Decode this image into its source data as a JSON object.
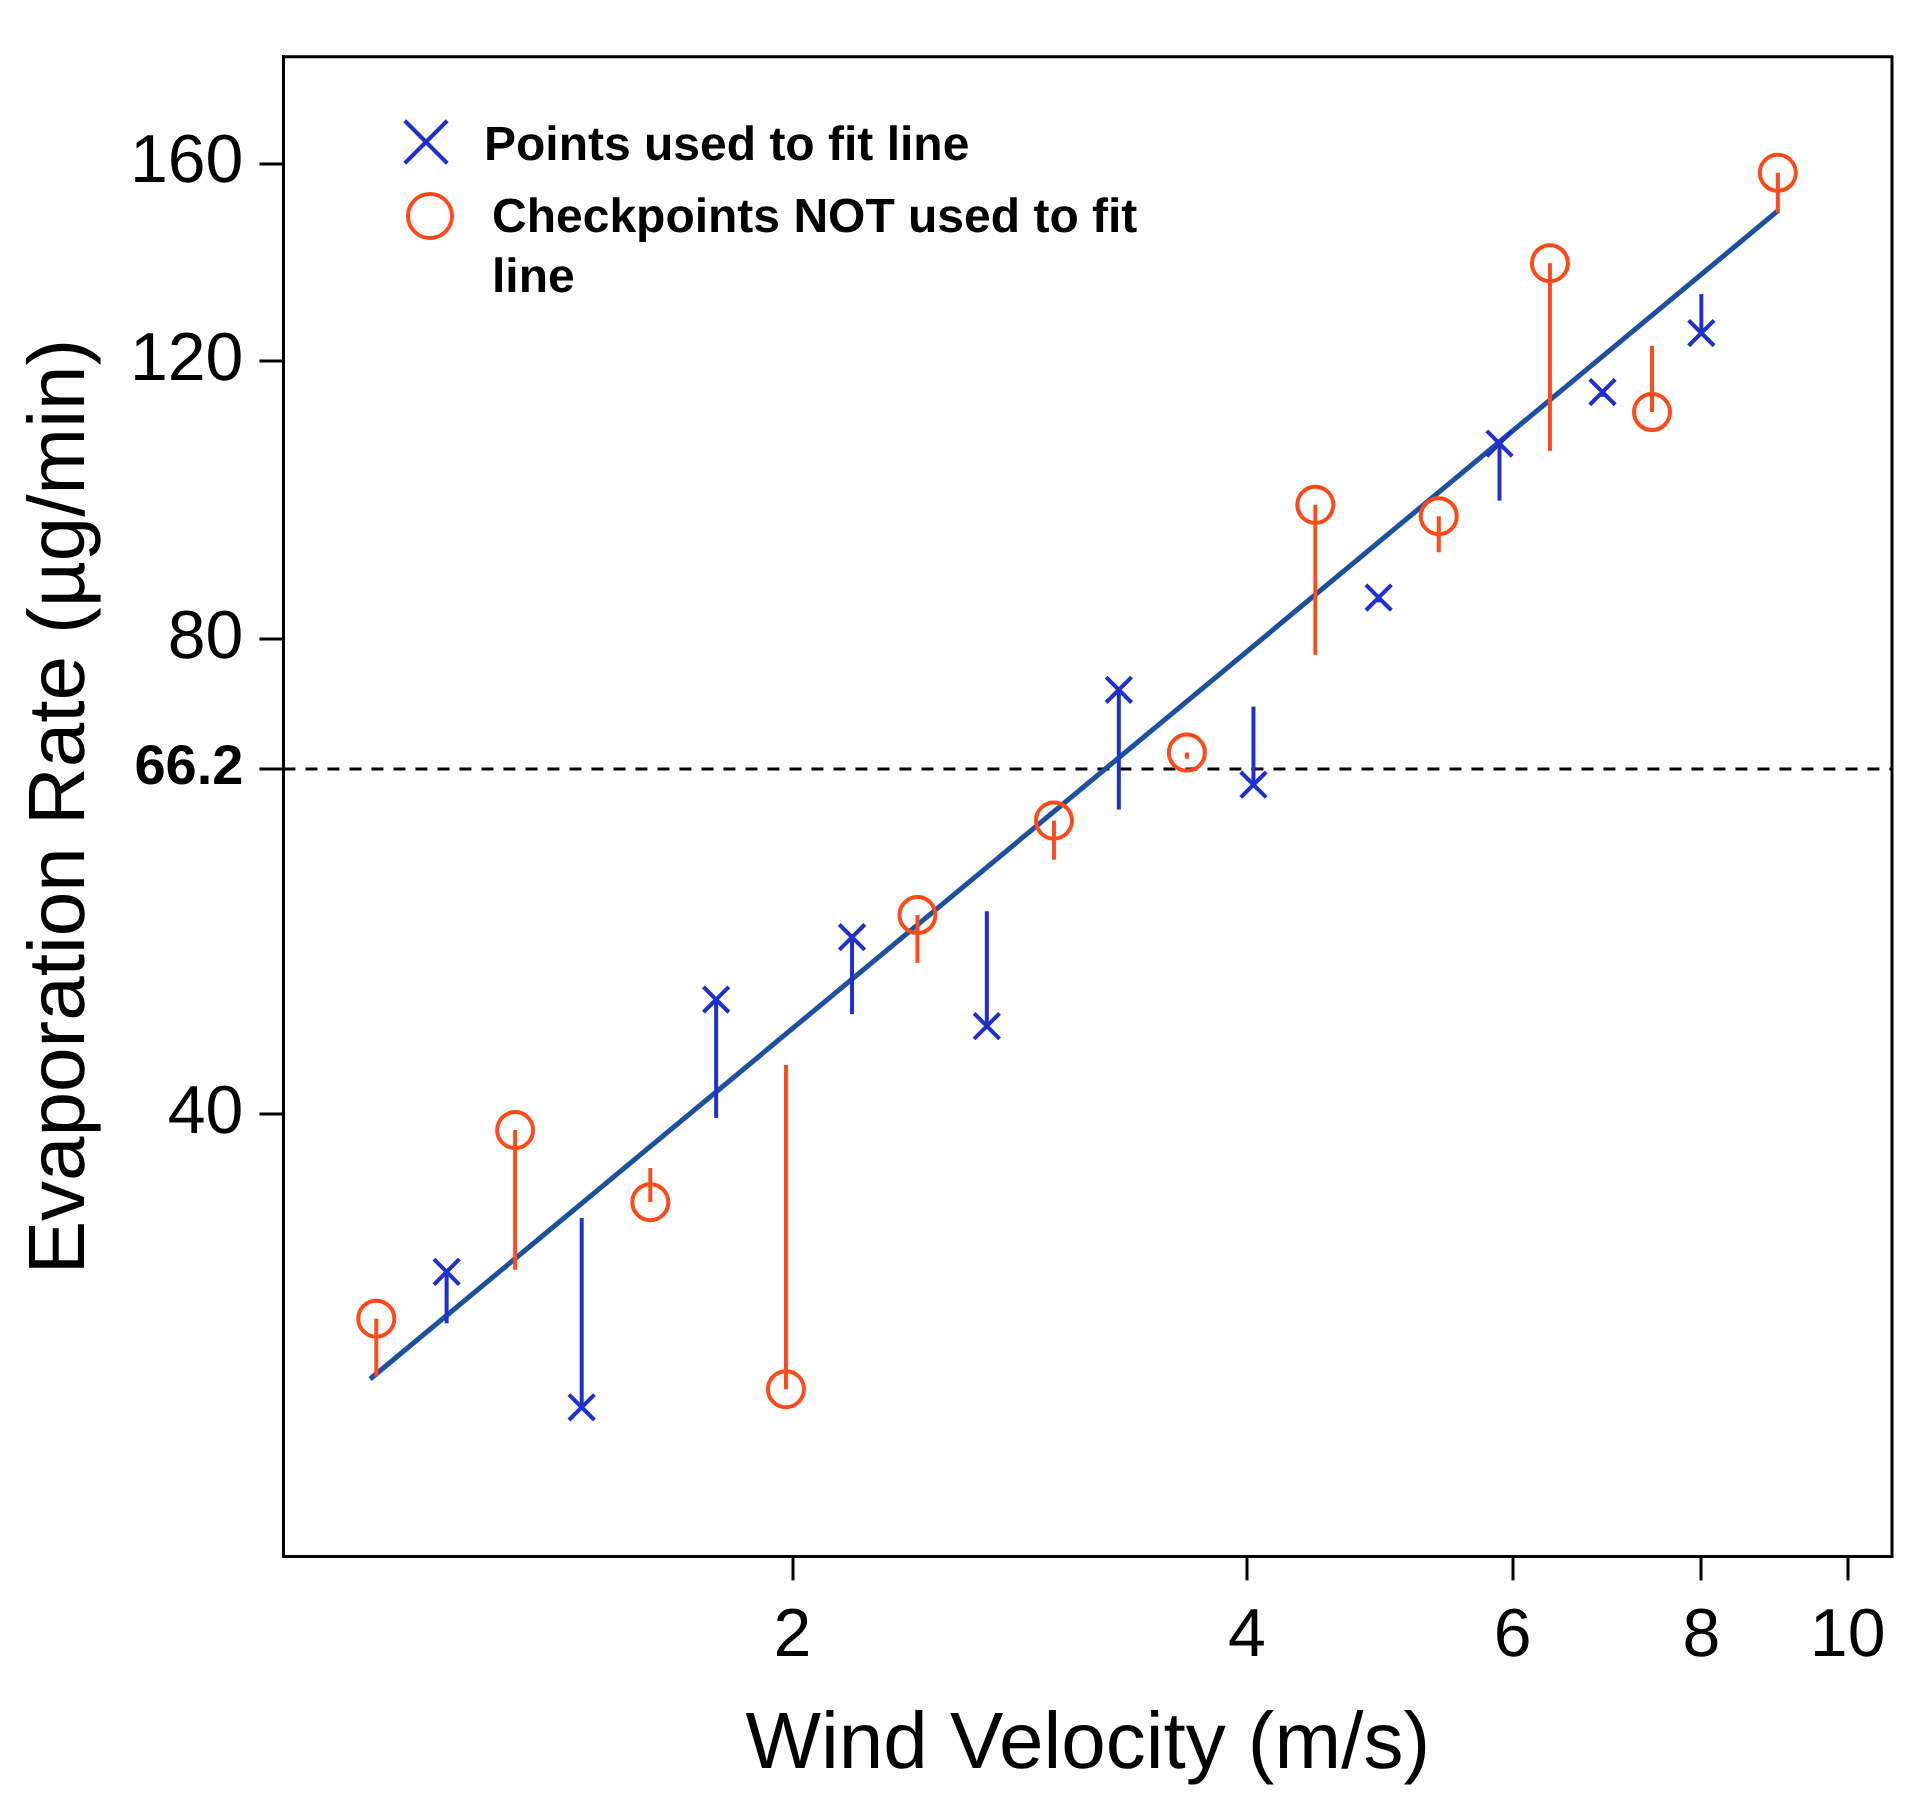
{
  "chart_data": {
    "type": "scatter",
    "xlabel": "Wind Velocity (m/s)",
    "ylabel": "Evaporation Rate (µg/min)",
    "log": "xy",
    "grid": false,
    "legend": "top left",
    "xlim": [
      0.92,
      10.7
    ],
    "xticks": [
      2,
      4,
      6,
      8,
      10
    ],
    "ylim": [
      21,
      187
    ],
    "yticks": [
      40,
      {
        "value": 66.2,
        "label": "66.2"
      },
      80,
      120,
      160
    ],
    "ref_lines": [
      {
        "axis": "y",
        "value": 66.2,
        "line_style": "dashed",
        "color": "#000000"
      }
    ],
    "series": [
      {
        "name": "Points used to fit line",
        "marker": "cross",
        "color": "#1f2fd0",
        "x": [
          1.18,
          1.45,
          1.78,
          2.19,
          2.69,
          3.29,
          4.04,
          4.89,
          5.88,
          6.88,
          8.0
        ],
        "values": [
          31.8,
          26.1,
          47.3,
          51.8,
          45.5,
          74.3,
          64.7,
          85.0,
          106.4,
          114.7,
          125.0
        ],
        "errors": [
          [
            29.5,
            31.8
          ],
          [
            26.1,
            34.4
          ],
          [
            39.8,
            47.3
          ],
          [
            46.3,
            51.8
          ],
          [
            45.5,
            53.8
          ],
          [
            62.4,
            74.3
          ],
          [
            64.7,
            72.5
          ],
          [
            84.4,
            85.0
          ],
          [
            97.9,
            106.4
          ],
          [
            113.9,
            114.7
          ],
          [
            125.0,
            132.3
          ]
        ]
      },
      {
        "name": "Checkpoints NOT used to fit line",
        "marker": "circle",
        "color": "#ff4a1c",
        "x": [
          1.06,
          1.31,
          1.61,
          1.98,
          2.42,
          2.98,
          3.65,
          4.44,
          5.36,
          6.35,
          7.42,
          8.99
        ],
        "values": [
          29.7,
          39.1,
          35.2,
          26.8,
          53.5,
          61.4,
          67.8,
          97.3,
          95.7,
          138.4,
          111.4,
          157.9
        ],
        "errors": [
          [
            27.3,
            29.7
          ],
          [
            31.9,
            39.1
          ],
          [
            35.2,
            37.0
          ],
          [
            26.8,
            43.0
          ],
          [
            49.9,
            53.5
          ],
          [
            58.0,
            61.4
          ],
          [
            67.2,
            67.8
          ],
          [
            78.2,
            97.3
          ],
          [
            90.8,
            95.7
          ],
          [
            105.3,
            138.4
          ],
          [
            111.4,
            122.7
          ],
          [
            149.0,
            157.9
          ]
        ]
      },
      {
        "type": "line",
        "color": "#1f4f9f",
        "x": [
          1.05,
          9.0
        ],
        "values": [
          27.2,
          149.5
        ]
      }
    ]
  }
}
